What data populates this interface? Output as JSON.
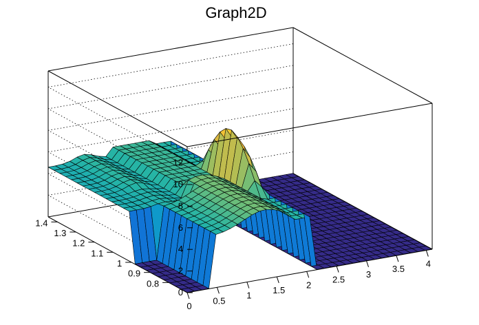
{
  "chart_data": {
    "type": "surface",
    "title": "Graph2D",
    "xlabel": "",
    "ylabel": "",
    "zlabel": "",
    "xlim": [
      0,
      4.1
    ],
    "ylim": [
      0.7,
      1.45
    ],
    "zlim": [
      0,
      13.5
    ],
    "grid": true,
    "x_ticks": [
      "0",
      "0.5",
      "1",
      "1.5",
      "2",
      "2.5",
      "3",
      "3.5",
      "4"
    ],
    "y_ticks": [
      "0.8",
      "0.9",
      "1",
      "1.1",
      "1.2",
      "1.3",
      "1.4"
    ],
    "z_ticks": [
      "0",
      "2",
      "4",
      "6",
      "8",
      "10",
      "12"
    ],
    "colormap": [
      "#352a87",
      "#1f52d5",
      "#0f7ad6",
      "#0f9dc8",
      "#25b4a6",
      "#6bbd7a",
      "#b4bd53",
      "#f0b93a",
      "#f9dd2a"
    ],
    "regions": [
      {
        "name": "left-plateau",
        "x": [
          0,
          1.0
        ],
        "y": [
          1.0,
          1.45
        ],
        "z": 4.6
      },
      {
        "name": "front-wall-plateau",
        "x": [
          0.4,
          1.7
        ],
        "y": [
          0.7,
          1.05
        ],
        "z_peak": 6.5
      },
      {
        "name": "central-peak",
        "x": [
          1.7,
          2.1
        ],
        "y": [
          0.95,
          1.15
        ],
        "z": 10.5
      },
      {
        "name": "right-floor",
        "x": [
          2.2,
          4.1
        ],
        "y": [
          0.7,
          1.45
        ],
        "z": 0
      }
    ]
  }
}
